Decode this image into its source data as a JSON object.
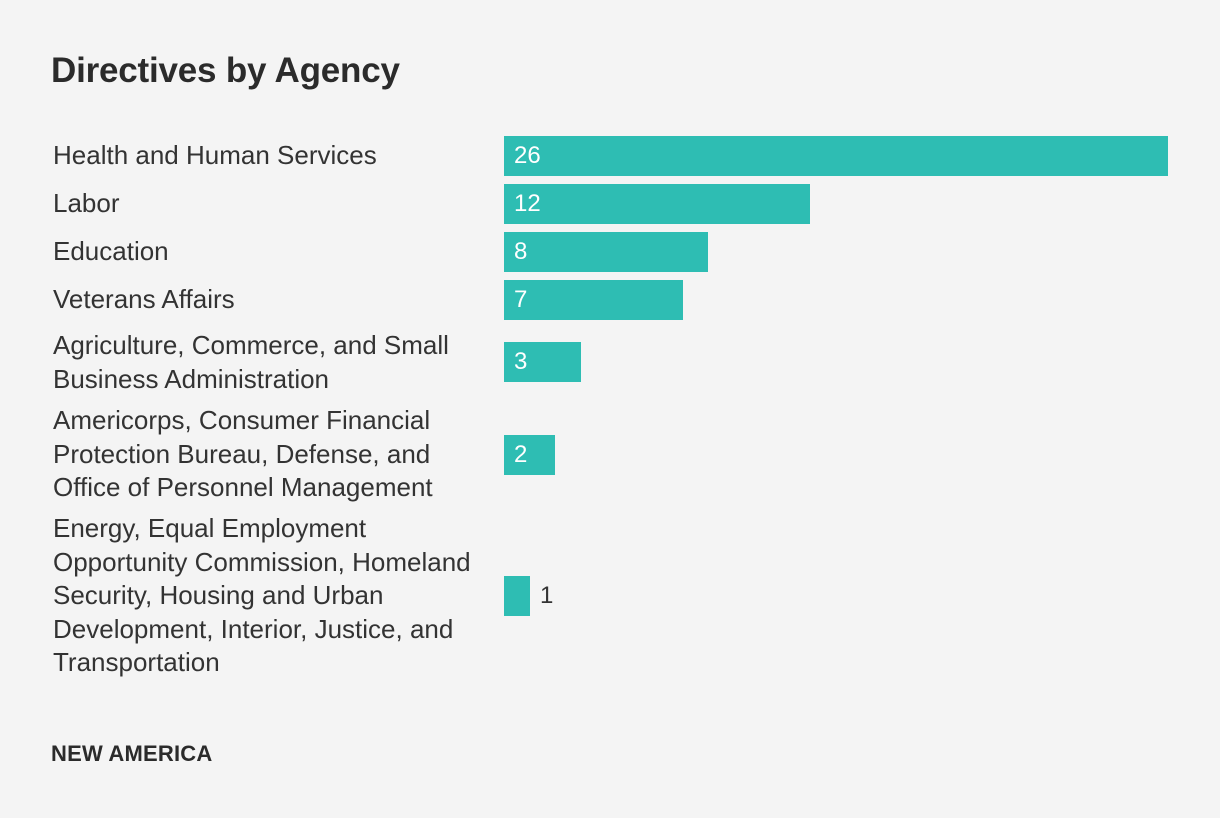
{
  "chart_data": {
    "type": "bar",
    "orientation": "horizontal",
    "title": "Directives by Agency",
    "categories": [
      "Health and Human Services",
      "Labor",
      "Education",
      "Veterans Affairs",
      "Agriculture, Commerce, and Small Business Administration",
      "Americorps, Consumer Financial Protection Bureau, Defense, and Office of Personnel Management",
      "Energy, Equal Employment Opportunity Commission, Homeland Security, Housing and Urban Development, Interior, Justice, and Transportation"
    ],
    "values": [
      26,
      12,
      8,
      7,
      3,
      2,
      1
    ],
    "xlim": [
      0,
      26
    ],
    "xlabel": "",
    "ylabel": "",
    "grid": false,
    "bar_color": "#2ebdb3"
  },
  "footer": {
    "brand": "NEW AMERICA"
  },
  "colors": {
    "background": "#f4f4f4",
    "bar": "#2ebdb3",
    "text": "#333333"
  }
}
